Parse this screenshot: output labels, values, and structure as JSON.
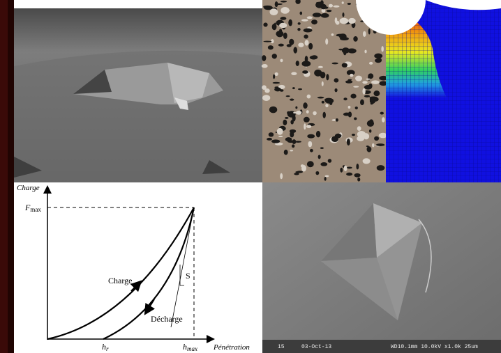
{
  "panels": {
    "sem_bottom_right": {
      "footer": [
        "15",
        "03-Oct-13",
        "WD10.1mm 10.0kV x1.0k 25um"
      ]
    },
    "diagram": {
      "y_axis_label": "Charge",
      "x_axis_label": "Pénétration",
      "f_max": {
        "symbol": "F",
        "subscript": "max"
      },
      "h_r": {
        "symbol": "h",
        "subscript": "r"
      },
      "h_max": {
        "symbol": "h",
        "subscript": "max"
      },
      "loading_label": "Charge",
      "unloading_label": "Décharge",
      "stiffness_label": "S"
    }
  }
}
